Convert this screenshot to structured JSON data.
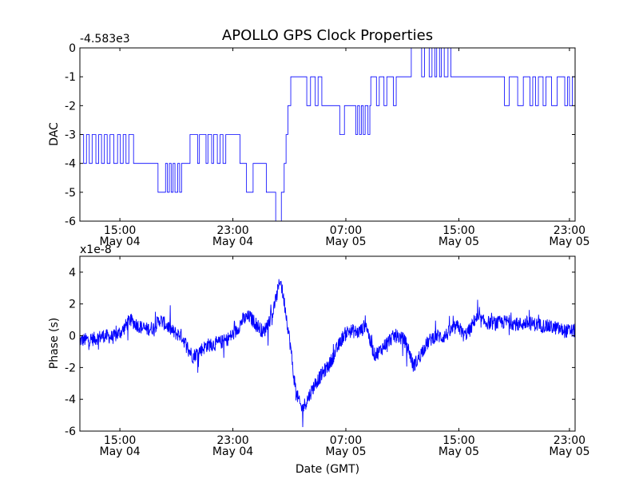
{
  "chart_data": [
    {
      "type": "line",
      "title": "APOLLO GPS Clock Properties",
      "ylabel": "DAC",
      "xlabel": "",
      "offset_label": "-4.583e3",
      "ylim": [
        -6,
        0
      ],
      "xlim": [
        0,
        52.6
      ],
      "yticks": [
        "0",
        "-1",
        "-2",
        "-3",
        "-4",
        "-5",
        "-6"
      ],
      "xticks": [
        {
          "x": 4.25,
          "time": "15:00",
          "date": "May 04"
        },
        {
          "x": 16.25,
          "time": "23:00",
          "date": "May 04"
        },
        {
          "x": 28.25,
          "time": "07:00",
          "date": "May 05"
        },
        {
          "x": 40.25,
          "time": "15:00",
          "date": "May 05"
        },
        {
          "x": 52.0,
          "time": "23:00",
          "date": "May 05"
        }
      ],
      "color": "#0000ff",
      "series": [
        {
          "name": "DAC",
          "points": [
            [
              0.0,
              -3
            ],
            [
              0.4,
              -4
            ],
            [
              0.7,
              -3
            ],
            [
              1.0,
              -4
            ],
            [
              1.3,
              -3
            ],
            [
              1.7,
              -4
            ],
            [
              2.0,
              -3
            ],
            [
              2.3,
              -4
            ],
            [
              2.6,
              -3
            ],
            [
              2.9,
              -4
            ],
            [
              3.2,
              -3
            ],
            [
              3.6,
              -4
            ],
            [
              4.0,
              -3
            ],
            [
              4.3,
              -4
            ],
            [
              4.6,
              -3
            ],
            [
              4.9,
              -4
            ],
            [
              5.2,
              -3
            ],
            [
              5.6,
              -3
            ],
            [
              5.7,
              -4
            ],
            [
              8.0,
              -4
            ],
            [
              8.3,
              -5
            ],
            [
              9.0,
              -5
            ],
            [
              9.1,
              -4
            ],
            [
              9.3,
              -5
            ],
            [
              9.5,
              -4
            ],
            [
              9.7,
              -5
            ],
            [
              9.9,
              -4
            ],
            [
              10.1,
              -5
            ],
            [
              10.4,
              -4
            ],
            [
              10.6,
              -5
            ],
            [
              10.8,
              -4
            ],
            [
              11.6,
              -4
            ],
            [
              11.7,
              -3
            ],
            [
              12.3,
              -3
            ],
            [
              12.5,
              -4
            ],
            [
              12.7,
              -3
            ],
            [
              13.2,
              -3
            ],
            [
              13.4,
              -4
            ],
            [
              13.6,
              -3
            ],
            [
              14.0,
              -4
            ],
            [
              14.2,
              -3
            ],
            [
              14.6,
              -4
            ],
            [
              14.9,
              -3
            ],
            [
              15.2,
              -4
            ],
            [
              15.5,
              -3
            ],
            [
              16.8,
              -3
            ],
            [
              17.0,
              -4
            ],
            [
              17.5,
              -4
            ],
            [
              17.7,
              -5
            ],
            [
              18.2,
              -5
            ],
            [
              18.4,
              -4
            ],
            [
              19.6,
              -4
            ],
            [
              19.8,
              -5
            ],
            [
              20.5,
              -5
            ],
            [
              20.8,
              -6
            ],
            [
              21.3,
              -6
            ],
            [
              21.4,
              -5
            ],
            [
              21.7,
              -4
            ],
            [
              21.9,
              -3
            ],
            [
              22.1,
              -2
            ],
            [
              22.4,
              -1
            ],
            [
              22.7,
              -1
            ],
            [
              24.0,
              -1
            ],
            [
              24.1,
              -2
            ],
            [
              24.4,
              -2
            ],
            [
              24.5,
              -1
            ],
            [
              24.9,
              -1
            ],
            [
              25.0,
              -2
            ],
            [
              25.3,
              -1
            ],
            [
              25.6,
              -1
            ],
            [
              25.7,
              -2
            ],
            [
              27.4,
              -2
            ],
            [
              27.6,
              -3
            ],
            [
              27.9,
              -3
            ],
            [
              28.1,
              -2
            ],
            [
              29.1,
              -2
            ],
            [
              29.3,
              -3
            ],
            [
              29.5,
              -2
            ],
            [
              29.7,
              -3
            ],
            [
              29.9,
              -2
            ],
            [
              30.1,
              -3
            ],
            [
              30.3,
              -2
            ],
            [
              30.6,
              -3
            ],
            [
              30.8,
              -2
            ],
            [
              30.9,
              -1
            ],
            [
              31.4,
              -1
            ],
            [
              31.5,
              -2
            ],
            [
              31.8,
              -1
            ],
            [
              32.2,
              -1
            ],
            [
              32.3,
              -2
            ],
            [
              32.6,
              -1
            ],
            [
              33.2,
              -1
            ],
            [
              33.3,
              -2
            ],
            [
              33.6,
              -1
            ],
            [
              35.0,
              -1
            ],
            [
              35.2,
              0
            ],
            [
              36.2,
              0
            ],
            [
              36.3,
              -1
            ],
            [
              36.6,
              0
            ],
            [
              37.0,
              0
            ],
            [
              37.1,
              -1
            ],
            [
              37.4,
              0
            ],
            [
              37.7,
              -1
            ],
            [
              37.9,
              0
            ],
            [
              38.2,
              -1
            ],
            [
              38.4,
              0
            ],
            [
              38.7,
              -1
            ],
            [
              39.1,
              0
            ],
            [
              39.4,
              -1
            ],
            [
              45.0,
              -1
            ],
            [
              45.1,
              -2
            ],
            [
              45.5,
              -2
            ],
            [
              45.6,
              -1
            ],
            [
              46.4,
              -1
            ],
            [
              46.5,
              -2
            ],
            [
              47.0,
              -2
            ],
            [
              47.1,
              -1
            ],
            [
              47.7,
              -1
            ],
            [
              47.8,
              -2
            ],
            [
              48.1,
              -1
            ],
            [
              48.4,
              -2
            ],
            [
              48.7,
              -1
            ],
            [
              49.1,
              -1
            ],
            [
              49.2,
              -2
            ],
            [
              49.5,
              -1
            ],
            [
              50.0,
              -1
            ],
            [
              50.1,
              -2
            ],
            [
              50.6,
              -2
            ],
            [
              50.7,
              -1
            ],
            [
              51.4,
              -1
            ],
            [
              51.5,
              -2
            ],
            [
              51.8,
              -1
            ],
            [
              52.0,
              -2
            ],
            [
              52.3,
              -1
            ],
            [
              52.6,
              -2
            ]
          ]
        }
      ]
    },
    {
      "type": "line",
      "title": "",
      "ylabel": "Phase (s)",
      "xlabel": "Date (GMT)",
      "offset_label": "x1e-8",
      "ylim": [
        -6,
        5
      ],
      "xlim": [
        0,
        52.6
      ],
      "yticks": [
        "4",
        "2",
        "0",
        "-2",
        "-4",
        "-6"
      ],
      "xticks": [
        {
          "x": 4.25,
          "time": "15:00",
          "date": "May 04"
        },
        {
          "x": 16.25,
          "time": "23:00",
          "date": "May 04"
        },
        {
          "x": 28.25,
          "time": "07:00",
          "date": "May 05"
        },
        {
          "x": 40.25,
          "time": "15:00",
          "date": "May 05"
        },
        {
          "x": 52.0,
          "time": "23:00",
          "date": "May 05"
        }
      ],
      "color": "#0000ff",
      "noise_amplitude": 0.45,
      "series": [
        {
          "name": "Phase",
          "points": [
            [
              0.0,
              -0.3
            ],
            [
              1.5,
              -0.2
            ],
            [
              2.5,
              0.0
            ],
            [
              3.5,
              -0.1
            ],
            [
              4.5,
              0.3
            ],
            [
              5.3,
              1.0
            ],
            [
              5.8,
              0.8
            ],
            [
              6.3,
              0.6
            ],
            [
              7.0,
              0.4
            ],
            [
              7.8,
              0.5
            ],
            [
              8.5,
              1.0
            ],
            [
              9.3,
              0.6
            ],
            [
              10.0,
              0.2
            ],
            [
              10.8,
              0.0
            ],
            [
              11.5,
              -0.8
            ],
            [
              12.0,
              -1.3
            ],
            [
              12.6,
              -1.0
            ],
            [
              13.5,
              -0.6
            ],
            [
              14.5,
              -0.5
            ],
            [
              15.5,
              -0.3
            ],
            [
              16.5,
              0.2
            ],
            [
              17.3,
              1.0
            ],
            [
              18.0,
              1.2
            ],
            [
              18.8,
              0.7
            ],
            [
              19.5,
              0.2
            ],
            [
              20.0,
              0.8
            ],
            [
              20.5,
              1.5
            ],
            [
              20.9,
              2.5
            ],
            [
              21.3,
              3.6
            ],
            [
              21.5,
              2.8
            ],
            [
              21.8,
              1.8
            ],
            [
              22.1,
              0.5
            ],
            [
              22.4,
              -0.8
            ],
            [
              22.7,
              -2.5
            ],
            [
              23.0,
              -3.6
            ],
            [
              23.3,
              -4.2
            ],
            [
              23.6,
              -4.6
            ],
            [
              24.0,
              -4.2
            ],
            [
              24.5,
              -3.6
            ],
            [
              25.0,
              -3.0
            ],
            [
              25.5,
              -2.6
            ],
            [
              26.0,
              -2.2
            ],
            [
              26.5,
              -1.8
            ],
            [
              27.0,
              -1.2
            ],
            [
              27.5,
              -0.6
            ],
            [
              28.0,
              0.0
            ],
            [
              28.5,
              0.3
            ],
            [
              29.0,
              0.3
            ],
            [
              29.5,
              0.2
            ],
            [
              30.0,
              0.4
            ],
            [
              30.4,
              0.8
            ],
            [
              30.8,
              -0.3
            ],
            [
              31.3,
              -1.2
            ],
            [
              31.8,
              -1.0
            ],
            [
              32.5,
              -0.5
            ],
            [
              33.0,
              -0.2
            ],
            [
              33.5,
              0.0
            ],
            [
              34.0,
              -0.1
            ],
            [
              34.5,
              -0.3
            ],
            [
              35.0,
              -1.0
            ],
            [
              35.4,
              -1.9
            ],
            [
              35.9,
              -1.5
            ],
            [
              36.5,
              -0.8
            ],
            [
              37.0,
              -0.4
            ],
            [
              37.5,
              -0.1
            ],
            [
              38.0,
              0.0
            ],
            [
              38.5,
              -0.1
            ],
            [
              39.0,
              0.1
            ],
            [
              39.6,
              0.4
            ],
            [
              40.2,
              0.6
            ],
            [
              40.8,
              0.0
            ],
            [
              41.5,
              0.4
            ],
            [
              42.0,
              1.1
            ],
            [
              42.8,
              0.9
            ],
            [
              43.5,
              0.8
            ],
            [
              44.5,
              0.8
            ],
            [
              45.5,
              0.9
            ],
            [
              46.5,
              0.7
            ],
            [
              47.5,
              0.8
            ],
            [
              48.5,
              0.7
            ],
            [
              49.5,
              0.6
            ],
            [
              50.5,
              0.5
            ],
            [
              51.5,
              0.3
            ],
            [
              52.6,
              0.3
            ]
          ]
        }
      ]
    }
  ]
}
